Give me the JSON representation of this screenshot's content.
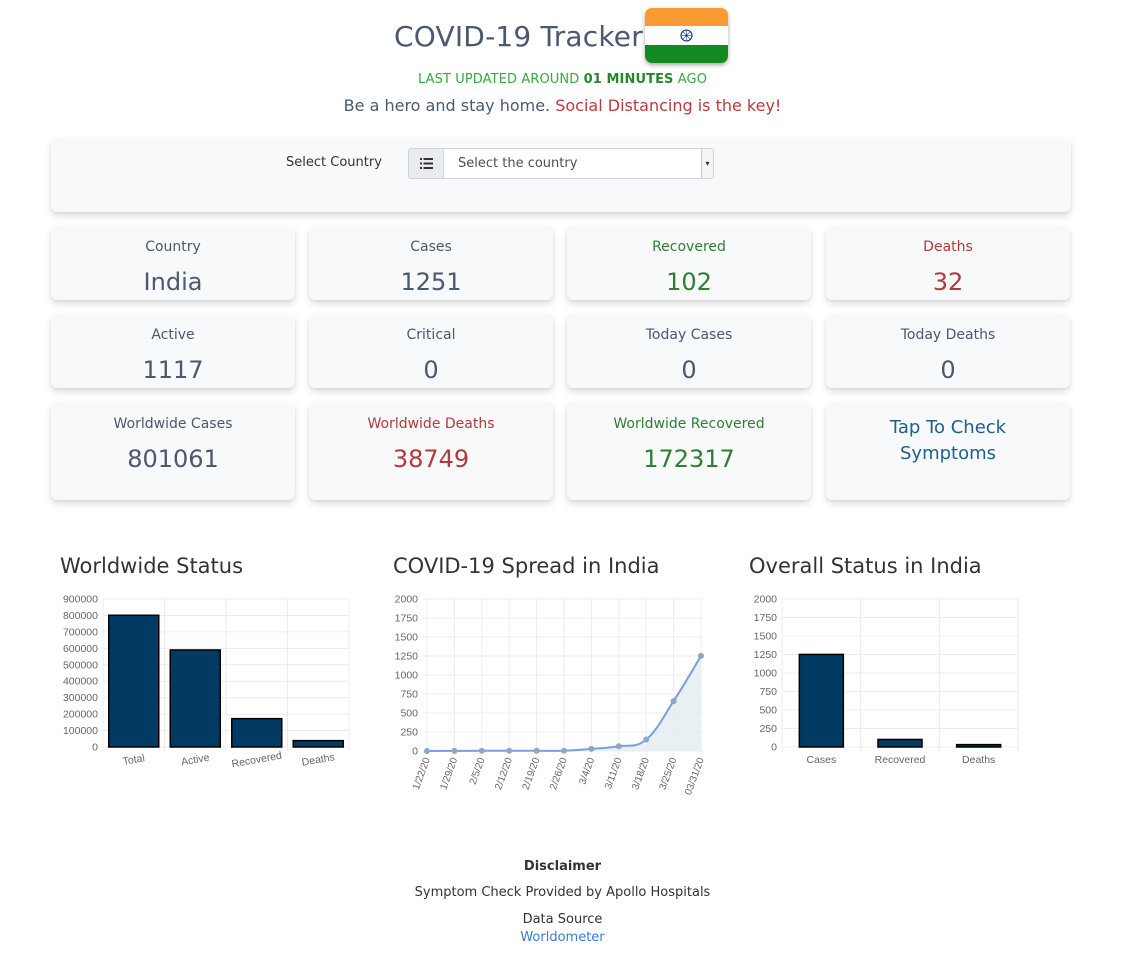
{
  "header": {
    "title": "COVID-19 Tracker",
    "flag_icon": "india-flag-icon",
    "updated_prefix": "LAST UPDATED AROUND",
    "updated_value": "01 MINUTES",
    "updated_suffix": "AGO",
    "tagline_main": "Be a hero and stay home.",
    "tagline_accent": "Social Distancing is the key!"
  },
  "selector": {
    "label": "Select Country",
    "placeholder": "Select the country",
    "icon": "list-icon"
  },
  "stats": {
    "country": {
      "label": "Country",
      "value": "India"
    },
    "cases": {
      "label": "Cases",
      "value": "1251"
    },
    "recovered": {
      "label": "Recovered",
      "value": "102"
    },
    "deaths": {
      "label": "Deaths",
      "value": "32"
    },
    "active": {
      "label": "Active",
      "value": "1117"
    },
    "critical": {
      "label": "Critical",
      "value": "0"
    },
    "today_cases": {
      "label": "Today Cases",
      "value": "0"
    },
    "today_deaths": {
      "label": "Today Deaths",
      "value": "0"
    },
    "world_cases": {
      "label": "Worldwide Cases",
      "value": "801061"
    },
    "world_deaths": {
      "label": "Worldwide Deaths",
      "value": "38749"
    },
    "world_recovered": {
      "label": "Worldwide Recovered",
      "value": "172317"
    },
    "symptoms_line1": "Tap To Check",
    "symptoms_line2": "Symptoms"
  },
  "colors": {
    "bar_fill": "#013a63",
    "line": "#7b9fe0",
    "area": "#e6eef3",
    "green": "#2f7f33",
    "red": "#b33a3a"
  },
  "chart_data": [
    {
      "type": "bar",
      "title": "Worldwide Status",
      "categories": [
        "Total",
        "Active",
        "Recovered",
        "Deaths"
      ],
      "values": [
        801061,
        589995,
        172317,
        38749
      ],
      "ylim": [
        0,
        900000
      ],
      "yticks": [
        0,
        100000,
        200000,
        300000,
        400000,
        500000,
        600000,
        700000,
        800000,
        900000
      ],
      "grid": true
    },
    {
      "type": "line",
      "title": "COVID-19 Spread in India",
      "x": [
        "1/22/20",
        "1/29/20",
        "2/5/20",
        "2/12/20",
        "2/19/20",
        "2/26/20",
        "3/4/20",
        "3/11/20",
        "3/18/20",
        "3/25/20",
        "03/31/20"
      ],
      "values": [
        0,
        1,
        3,
        3,
        3,
        3,
        28,
        62,
        151,
        657,
        1251
      ],
      "ylim": [
        0,
        2000
      ],
      "yticks": [
        0,
        250,
        500,
        750,
        1000,
        1250,
        1500,
        1750,
        2000
      ],
      "grid": true
    },
    {
      "type": "bar",
      "title": "Overall Status in India",
      "categories": [
        "Cases",
        "Recovered",
        "Deaths"
      ],
      "values": [
        1251,
        102,
        32
      ],
      "ylim": [
        0,
        2000
      ],
      "yticks": [
        0,
        250,
        500,
        750,
        1000,
        1250,
        1500,
        1750,
        2000
      ],
      "grid": true
    }
  ],
  "footer": {
    "disclaimer": "Disclaimer",
    "symptom_note": "Symptom Check Provided by Apollo Hospitals",
    "source_label": "Data Source",
    "source_link": "Worldometer"
  }
}
